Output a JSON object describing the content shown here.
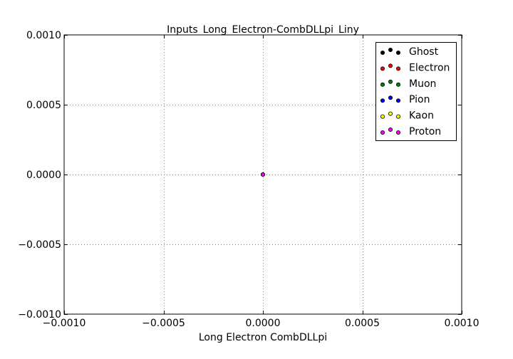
{
  "chart_data": {
    "type": "scatter",
    "title": "Inputs_Long_Electron-CombDLLpi_Liny",
    "xlabel": "Long Electron CombDLLpi",
    "ylabel": "",
    "xlim": [
      -0.001,
      0.001
    ],
    "ylim": [
      -0.001,
      0.001
    ],
    "x_ticks": [
      -0.001,
      -0.0005,
      0.0,
      0.0005,
      0.001
    ],
    "y_ticks": [
      -0.001,
      -0.0005,
      0.0,
      0.0005,
      0.001
    ],
    "x_tick_labels": [
      "−0.0010",
      "−0.0005",
      "0.0000",
      "0.0005",
      "0.0010"
    ],
    "y_tick_labels": [
      "−0.0010",
      "−0.0005",
      "0.0000",
      "0.0005",
      "0.0010"
    ],
    "grid": true,
    "legend_position": "top-right",
    "series": [
      {
        "name": "Ghost",
        "color": "#000000",
        "points": [
          [
            0.0,
            0.0
          ]
        ]
      },
      {
        "name": "Electron",
        "color": "#ff0000",
        "points": [
          [
            0.0,
            0.0
          ]
        ]
      },
      {
        "name": "Muon",
        "color": "#008000",
        "points": [
          [
            0.0,
            0.0
          ]
        ]
      },
      {
        "name": "Pion",
        "color": "#0000ff",
        "points": [
          [
            0.0,
            0.0
          ]
        ]
      },
      {
        "name": "Kaon",
        "color": "#ffff00",
        "points": [
          [
            0.0,
            0.0
          ]
        ]
      },
      {
        "name": "Proton",
        "color": "#ff00ff",
        "points": [
          [
            0.0,
            0.0
          ]
        ]
      }
    ]
  }
}
